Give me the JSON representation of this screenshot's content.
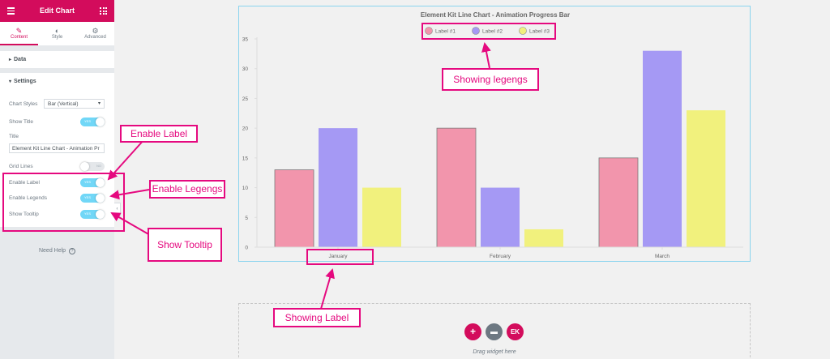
{
  "panel": {
    "title": "Edit Chart",
    "tabs": [
      {
        "label": "Content",
        "icon": "pencil-icon"
      },
      {
        "label": "Style",
        "icon": "half-circle-icon"
      },
      {
        "label": "Advanced",
        "icon": "gear-icon"
      }
    ],
    "sections": {
      "data": "Data",
      "settings": "Settings"
    },
    "chart_styles_label": "Chart Styles",
    "chart_styles_value": "Bar (Vertical)",
    "show_title_label": "Show Title",
    "title_label": "Title",
    "title_value": "Element Kit Line Chart - Animation Pr",
    "grid_lines_label": "Grid Lines",
    "enable_label_label": "Enable Label",
    "enable_legends_label": "Enable Legends",
    "show_tooltip_label": "Show Tooltip",
    "switch_on": "YES",
    "switch_off": "NO",
    "switches": {
      "show_title": true,
      "grid_lines": false,
      "enable_label": true,
      "enable_legends": true,
      "show_tooltip": true
    },
    "need_help": "Need Help",
    "accent_color": "#d30c5c"
  },
  "chart_data": {
    "type": "bar",
    "title": "Element Kit Line Chart - Animation Progress Bar",
    "categories": [
      "January",
      "February",
      "March"
    ],
    "series": [
      {
        "name": "Label #1",
        "values": [
          13,
          20,
          15
        ],
        "color": "#f295ac"
      },
      {
        "name": "Label #2",
        "values": [
          20,
          10,
          33
        ],
        "color": "#a599f4"
      },
      {
        "name": "Label #3",
        "values": [
          10,
          3,
          23
        ],
        "color": "#f1f17d"
      }
    ],
    "ylim": [
      0,
      35
    ],
    "yticks": [
      0,
      5,
      10,
      15,
      20,
      25,
      30,
      35
    ],
    "grid": false,
    "legend": "top-center"
  },
  "dropzone": {
    "text": "Drag widget here"
  },
  "annotations": {
    "enable_label": "Enable Label",
    "enable_legends": "Enable Legengs",
    "show_tooltip": "Show Tooltip",
    "showing_legends": "Showing legengs",
    "showing_label": "Showing Label",
    "color": "#e5097f"
  }
}
